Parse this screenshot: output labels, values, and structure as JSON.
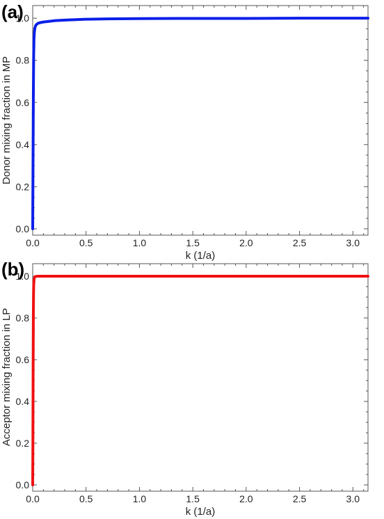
{
  "chart_data": [
    {
      "type": "line",
      "panel_label": "(a)",
      "xlabel": "k (1/a)",
      "ylabel": "Donor mixing fraction in MP",
      "xlim": [
        0,
        3.14159
      ],
      "ylim": [
        -0.03,
        1.06
      ],
      "x_ticks": [
        0.0,
        0.5,
        1.0,
        1.5,
        2.0,
        2.5,
        3.0
      ],
      "x_tick_labels": [
        "0.0",
        "0.5",
        "1.0",
        "1.5",
        "2.0",
        "2.5",
        "3.0"
      ],
      "y_ticks": [
        0.0,
        0.2,
        0.4,
        0.6,
        0.8,
        1.0
      ],
      "y_tick_labels": [
        "0.0",
        "0.2",
        "0.4",
        "0.6",
        "0.8",
        "1.0"
      ],
      "grid": false,
      "series": [
        {
          "color": "#0a1fe8",
          "x": [
            0.0,
            0.003,
            0.006,
            0.009,
            0.012,
            0.016,
            0.02,
            0.025,
            0.03,
            0.04,
            0.05,
            0.07,
            0.1,
            0.15,
            0.2,
            0.3,
            0.4,
            0.5,
            0.7,
            1.0,
            1.5,
            2.0,
            2.5,
            3.0,
            3.14159
          ],
          "y": [
            0.0,
            0.3,
            0.62,
            0.82,
            0.9,
            0.935,
            0.952,
            0.961,
            0.967,
            0.972,
            0.976,
            0.979,
            0.982,
            0.985,
            0.988,
            0.991,
            0.993,
            0.995,
            0.997,
            0.998,
            0.999,
            0.999,
            1.0,
            1.0,
            1.0
          ]
        }
      ]
    },
    {
      "type": "line",
      "panel_label": "(b)",
      "xlabel": "k (1/a)",
      "ylabel": "Acceptor mixing fraction in LP",
      "xlim": [
        0,
        3.14159
      ],
      "ylim": [
        -0.03,
        1.06
      ],
      "x_ticks": [
        0.0,
        0.5,
        1.0,
        1.5,
        2.0,
        2.5,
        3.0
      ],
      "x_tick_labels": [
        "0.0",
        "0.5",
        "1.0",
        "1.5",
        "2.0",
        "2.5",
        "3.0"
      ],
      "y_ticks": [
        0.0,
        0.2,
        0.4,
        0.6,
        0.8,
        1.0
      ],
      "y_tick_labels": [
        "0.0",
        "0.2",
        "0.4",
        "0.6",
        "0.8",
        "1.0"
      ],
      "grid": false,
      "series": [
        {
          "color": "#f01010",
          "x": [
            0.0,
            0.002,
            0.004,
            0.006,
            0.008,
            0.01,
            0.013,
            0.016,
            0.02,
            0.025,
            0.03,
            0.04,
            0.06,
            0.1,
            0.3,
            1.0,
            2.0,
            3.14159
          ],
          "y": [
            0.0,
            0.2,
            0.55,
            0.8,
            0.92,
            0.965,
            0.985,
            0.993,
            0.997,
            0.998,
            0.999,
            0.9995,
            1.0,
            1.0,
            1.0,
            1.0,
            1.0,
            1.0
          ]
        }
      ]
    }
  ]
}
